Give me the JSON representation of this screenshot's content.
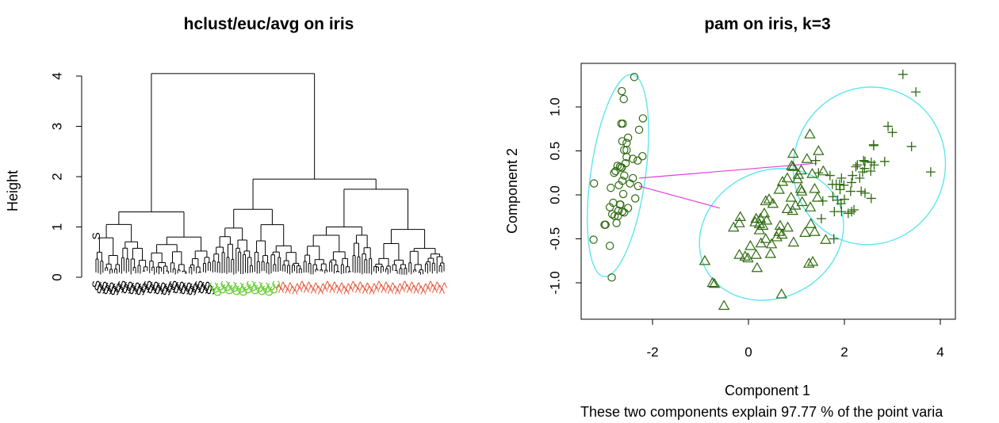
{
  "chart_data": [
    {
      "type": "dendrogram",
      "title": "hclust/euc/avg on iris",
      "ylabel": "Height",
      "ylim": [
        0,
        4.2
      ],
      "yticks": [
        "0",
        "1",
        "2",
        "3",
        "4"
      ],
      "leaf_count": 150,
      "leaf_labels": [
        "S",
        "C",
        ">"
      ],
      "leaf_label_colors": {
        "S": "#000000",
        "C": "#66cc33",
        ">": "#e8583c"
      },
      "leaf_groups": [
        {
          "label": "S",
          "count": 50
        },
        {
          "label": "C",
          "count": 28
        },
        {
          "label": ">",
          "count": 72
        }
      ],
      "merge_heights": {
        "root": 4.05,
        "setosa_cluster": 1.3,
        "setosa_subclusters": [
          1.05,
          0.8
        ],
        "right_cluster": 1.95,
        "right_subclusters": [
          1.75,
          1.35
        ],
        "right_minor": [
          1.0,
          0.95,
          0.9
        ]
      }
    },
    {
      "type": "scatter",
      "title": "pam on iris, k=3",
      "xlabel": "Component 1",
      "ylabel": "Component 2",
      "xlim": [
        -3.5,
        4.3
      ],
      "ylim": [
        -1.4,
        1.45
      ],
      "xticks": [
        "-2",
        "0",
        "2",
        "4"
      ],
      "yticks": [
        "-1.0",
        "-0.5",
        "0.0",
        "0.5",
        "1.0"
      ],
      "note": "These two components explain 97.77 % of the point varia",
      "point_color": "#2e6b10",
      "ellipse_color": "#5ee6ee",
      "connector_color": "#e040e0",
      "clusters": [
        {
          "marker": "circle",
          "ellipse": {
            "cx": -2.72,
            "cy": 0.22,
            "rx": 0.57,
            "ry": 1.16,
            "angle": 8
          },
          "points": [
            [
              -2.68,
              0.32
            ],
            [
              -2.71,
              -0.18
            ],
            [
              -2.89,
              -0.14
            ],
            [
              -2.75,
              -0.32
            ],
            [
              -2.73,
              0.33
            ],
            [
              -2.28,
              0.74
            ],
            [
              -2.82,
              -0.09
            ],
            [
              -2.63,
              0.16
            ],
            [
              -2.89,
              -0.58
            ],
            [
              -2.67,
              -0.11
            ],
            [
              -2.51,
              0.65
            ],
            [
              -2.61,
              0.01
            ],
            [
              -2.79,
              -0.24
            ],
            [
              -3.23,
              -0.51
            ],
            [
              -2.64,
              1.18
            ],
            [
              -2.38,
              1.34
            ],
            [
              -2.62,
              0.81
            ],
            [
              -2.65,
              0.31
            ],
            [
              -2.2,
              0.87
            ],
            [
              -2.59,
              0.51
            ],
            [
              -2.31,
              0.39
            ],
            [
              -2.54,
              0.43
            ],
            [
              -3.22,
              0.13
            ],
            [
              -2.3,
              0.1
            ],
            [
              -2.36,
              -0.04
            ],
            [
              -2.51,
              -0.15
            ],
            [
              -2.47,
              0.13
            ],
            [
              -2.56,
              0.36
            ],
            [
              -2.64,
              0.31
            ],
            [
              -2.63,
              -0.19
            ],
            [
              -2.59,
              -0.2
            ],
            [
              -2.41,
              0.41
            ],
            [
              -2.65,
              0.81
            ],
            [
              -2.6,
              1.09
            ],
            [
              -2.68,
              -0.11
            ],
            [
              -2.87,
              0.08
            ],
            [
              -2.63,
              0.61
            ],
            [
              -2.8,
              0.25
            ],
            [
              -2.98,
              -0.34
            ],
            [
              -2.59,
              0.22
            ],
            [
              -2.77,
              0.27
            ],
            [
              -2.85,
              -0.94
            ],
            [
              -3.0,
              -0.34
            ],
            [
              -2.41,
              0.19
            ],
            [
              -2.21,
              0.44
            ],
            [
              -2.72,
              -0.24
            ],
            [
              -2.54,
              0.51
            ],
            [
              -2.84,
              -0.22
            ],
            [
              -2.54,
              0.59
            ],
            [
              -2.7,
              0.11
            ]
          ]
        },
        {
          "marker": "triangle",
          "ellipse": {
            "cx": 0.48,
            "cy": -0.45,
            "rx": 1.55,
            "ry": 0.72,
            "angle": -28
          },
          "points": [
            [
              1.28,
              0.69
            ],
            [
              0.93,
              0.32
            ],
            [
              1.46,
              0.5
            ],
            [
              0.18,
              -0.83
            ],
            [
              1.09,
              0.07
            ],
            [
              0.64,
              -0.42
            ],
            [
              1.1,
              0.28
            ],
            [
              -0.75,
              -1.0
            ],
            [
              1.04,
              0.23
            ],
            [
              -0.01,
              -0.72
            ],
            [
              -0.51,
              -1.26
            ],
            [
              0.51,
              -0.1
            ],
            [
              0.26,
              -0.55
            ],
            [
              0.98,
              -0.12
            ],
            [
              -0.17,
              -0.25
            ],
            [
              0.93,
              0.47
            ],
            [
              0.66,
              -0.35
            ],
            [
              0.23,
              -0.33
            ],
            [
              0.94,
              -0.54
            ],
            [
              0.04,
              -0.58
            ],
            [
              1.12,
              -0.08
            ],
            [
              0.36,
              -0.07
            ],
            [
              1.3,
              -0.33
            ],
            [
              0.92,
              -0.18
            ],
            [
              0.71,
              0.15
            ],
            [
              0.9,
              0.33
            ],
            [
              1.33,
              0.24
            ],
            [
              1.56,
              0.27
            ],
            [
              0.81,
              -0.16
            ],
            [
              -0.31,
              -0.37
            ],
            [
              -0.07,
              -0.7
            ],
            [
              -0.19,
              -0.68
            ],
            [
              0.14,
              -0.31
            ],
            [
              1.38,
              -0.42
            ],
            [
              0.59,
              -0.48
            ],
            [
              0.81,
              0.19
            ],
            [
              1.22,
              0.41
            ],
            [
              0.82,
              -0.37
            ],
            [
              0.25,
              -0.27
            ],
            [
              0.16,
              -0.68
            ],
            [
              0.46,
              -0.67
            ],
            [
              0.89,
              -0.03
            ],
            [
              0.23,
              -0.4
            ],
            [
              -0.71,
              -1.01
            ],
            [
              0.36,
              -0.5
            ],
            [
              0.33,
              -0.21
            ],
            [
              0.38,
              -0.29
            ],
            [
              0.64,
              0.06
            ],
            [
              -0.91,
              -0.75
            ],
            [
              0.3,
              -0.35
            ],
            [
              0.48,
              -0.56
            ],
            [
              1.02,
              0.18
            ],
            [
              1.44,
              -0.03
            ],
            [
              1.11,
              0.04
            ],
            [
              0.16,
              -0.27
            ],
            [
              1.38,
              0.07
            ],
            [
              1.29,
              -0.14
            ],
            [
              0.43,
              -0.05
            ],
            [
              -0.19,
              -0.32
            ],
            [
              0.7,
              -0.45
            ],
            [
              1.26,
              -0.78
            ],
            [
              1.34,
              -0.76
            ],
            [
              1.18,
              -0.43
            ],
            [
              1.61,
              -0.51
            ],
            [
              0.69,
              -1.13
            ]
          ]
        },
        {
          "marker": "plus",
          "ellipse": {
            "cx": 2.52,
            "cy": 0.33,
            "rx": 1.58,
            "ry": 0.9,
            "angle": 18
          },
          "points": [
            [
              2.61,
              0.57
            ],
            [
              2.84,
              0.38
            ],
            [
              3.22,
              1.37
            ],
            [
              3.8,
              0.26
            ],
            [
              3.4,
              0.55
            ],
            [
              3.49,
              1.17
            ],
            [
              2.91,
              0.78
            ],
            [
              3.0,
              0.71
            ],
            [
              2.27,
              0.34
            ],
            [
              2.61,
              0.56
            ],
            [
              2.35,
              0.04
            ],
            [
              2.0,
              -0.05
            ],
            [
              2.17,
              0.22
            ],
            [
              2.56,
              0.37
            ],
            [
              2.43,
              0.38
            ],
            [
              1.79,
              -0.19
            ],
            [
              2.15,
              0.14
            ],
            [
              2.38,
              0.26
            ],
            [
              1.9,
              0.12
            ],
            [
              2.4,
              0.39
            ],
            [
              1.91,
              0.06
            ],
            [
              1.75,
              0.12
            ],
            [
              1.99,
              0.11
            ],
            [
              2.08,
              -0.21
            ],
            [
              2.13,
              0.04
            ],
            [
              1.78,
              -0.5
            ],
            [
              2.32,
              0.19
            ],
            [
              2.24,
              0.32
            ],
            [
              1.94,
              0.19
            ],
            [
              2.42,
              0.3
            ],
            [
              2.62,
              0.34
            ],
            [
              1.94,
              -0.19
            ],
            [
              2.55,
              0.27
            ],
            [
              2.56,
              -0.04
            ],
            [
              1.52,
              -0.27
            ],
            [
              1.86,
              -0.06
            ],
            [
              1.7,
              0.22
            ],
            [
              1.76,
              -0.02
            ],
            [
              1.55,
              -0.07
            ],
            [
              1.4,
              0.39
            ],
            [
              2.43,
              0.02
            ],
            [
              1.46,
              0.25
            ],
            [
              2.15,
              -0.19
            ],
            [
              1.83,
              0.12
            ],
            [
              1.93,
              -0.1
            ],
            [
              2.2,
              -0.17
            ]
          ]
        }
      ],
      "connectors": [
        {
          "from": [
            -2.28,
            0.19
          ],
          "to": [
            1.43,
            0.36
          ]
        },
        {
          "from": [
            -2.28,
            0.1
          ],
          "to": [
            -0.6,
            -0.15
          ]
        }
      ]
    }
  ]
}
